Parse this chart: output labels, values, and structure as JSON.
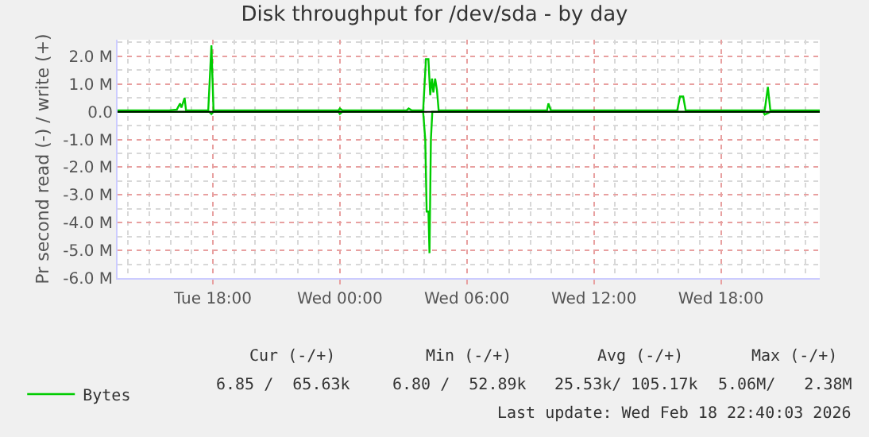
{
  "chart_data": {
    "type": "line",
    "title": "Disk throughput for /dev/sda - by day",
    "ylabel": "Pr second read (-) / write (+)",
    "xlim": [
      "2026-02-17T13:30",
      "2026-02-18T22:40"
    ],
    "xticks": [
      {
        "value": "2026-02-17T18:00",
        "label": "Tue 18:00"
      },
      {
        "value": "2026-02-18T00:00",
        "label": "Wed 00:00"
      },
      {
        "value": "2026-02-18T06:00",
        "label": "Wed 06:00"
      },
      {
        "value": "2026-02-18T12:00",
        "label": "Wed 12:00"
      },
      {
        "value": "2026-02-18T18:00",
        "label": "Wed 18:00"
      }
    ],
    "ylim": [
      -6,
      2.6
    ],
    "yticks": [
      {
        "value": -6,
        "label": "-6.0 M"
      },
      {
        "value": -5,
        "label": "-5.0 M"
      },
      {
        "value": -4,
        "label": "-4.0 M"
      },
      {
        "value": -3,
        "label": "-3.0 M"
      },
      {
        "value": -2,
        "label": "-2.0 M"
      },
      {
        "value": -1,
        "label": "-1.0 M"
      },
      {
        "value": 0,
        "label": "0.0"
      },
      {
        "value": 1,
        "label": "1.0 M"
      },
      {
        "value": 2,
        "label": "2.0 M"
      }
    ],
    "grid": true,
    "legend": "bottom",
    "marker": "none",
    "line_style": "solid",
    "ref_lines": [
      {
        "axis": "y",
        "value": 0,
        "color": "#000000"
      }
    ],
    "series": [
      {
        "name": "Bytes",
        "color": "#00cc00",
        "x": [
          "2026-02-17T13:30",
          "2026-02-17T15:56",
          "2026-02-17T16:18",
          "2026-02-17T16:27",
          "2026-02-17T16:31",
          "2026-02-17T16:40",
          "2026-02-17T16:44",
          "2026-02-17T17:47",
          "2026-02-17T17:56",
          "2026-02-17T18:02",
          "2026-02-17T23:56",
          "2026-02-18T00:00",
          "2026-02-18T00:07",
          "2026-02-18T03:09",
          "2026-02-18T03:15",
          "2026-02-18T03:24",
          "2026-02-18T03:56",
          "2026-02-18T04:04",
          "2026-02-18T04:11",
          "2026-02-18T04:16",
          "2026-02-18T04:21",
          "2026-02-18T04:25",
          "2026-02-18T04:30",
          "2026-02-18T04:35",
          "2026-02-18T04:40",
          "2026-02-18T09:47",
          "2026-02-18T09:51",
          "2026-02-18T09:58",
          "2026-02-18T15:56",
          "2026-02-18T16:04",
          "2026-02-18T16:13",
          "2026-02-18T16:20",
          "2026-02-18T20:04",
          "2026-02-18T20:13",
          "2026-02-18T20:20",
          "2026-02-18T22:40"
        ],
        "values": [
          0.05,
          0.05,
          0.08,
          0.3,
          0.15,
          0.5,
          0.05,
          0.05,
          2.4,
          0.05,
          0.05,
          0.12,
          0.05,
          0.05,
          0.12,
          0.05,
          0.05,
          1.9,
          1.9,
          0.6,
          1.2,
          0.7,
          1.2,
          0.8,
          0.05,
          0.05,
          0.3,
          0.05,
          0.05,
          0.55,
          0.55,
          0.05,
          0.05,
          0.9,
          0.05,
          0.05
        ]
      },
      {
        "color": "#00cc00",
        "x": [
          "2026-02-17T13:30",
          "2026-02-17T17:50",
          "2026-02-17T17:56",
          "2026-02-17T18:02",
          "2026-02-17T23:56",
          "2026-02-18T00:00",
          "2026-02-18T00:07",
          "2026-02-18T03:56",
          "2026-02-18T04:02",
          "2026-02-18T04:06",
          "2026-02-18T04:11",
          "2026-02-18T04:14",
          "2026-02-18T04:18",
          "2026-02-18T04:22",
          "2026-02-18T20:00",
          "2026-02-18T20:04",
          "2026-02-18T20:13",
          "2026-02-18T20:20",
          "2026-02-18T22:40"
        ],
        "values": [
          0,
          0,
          -0.08,
          0,
          0,
          -0.08,
          0,
          0,
          -1.0,
          -3.6,
          -3.6,
          -5.1,
          -1.0,
          0,
          0,
          -0.1,
          -0.05,
          0,
          0
        ]
      }
    ],
    "annotations": [
      "Cur (-/+)",
      "Min (-/+)",
      "Avg (-/+)",
      "Max (-/+)",
      "6.85 /  65.63k",
      "6.80 /  52.89k",
      "25.53k/ 105.17k",
      "5.06M/   2.38M",
      "Last update: Wed Feb 18 22:40:03 2026"
    ]
  }
}
